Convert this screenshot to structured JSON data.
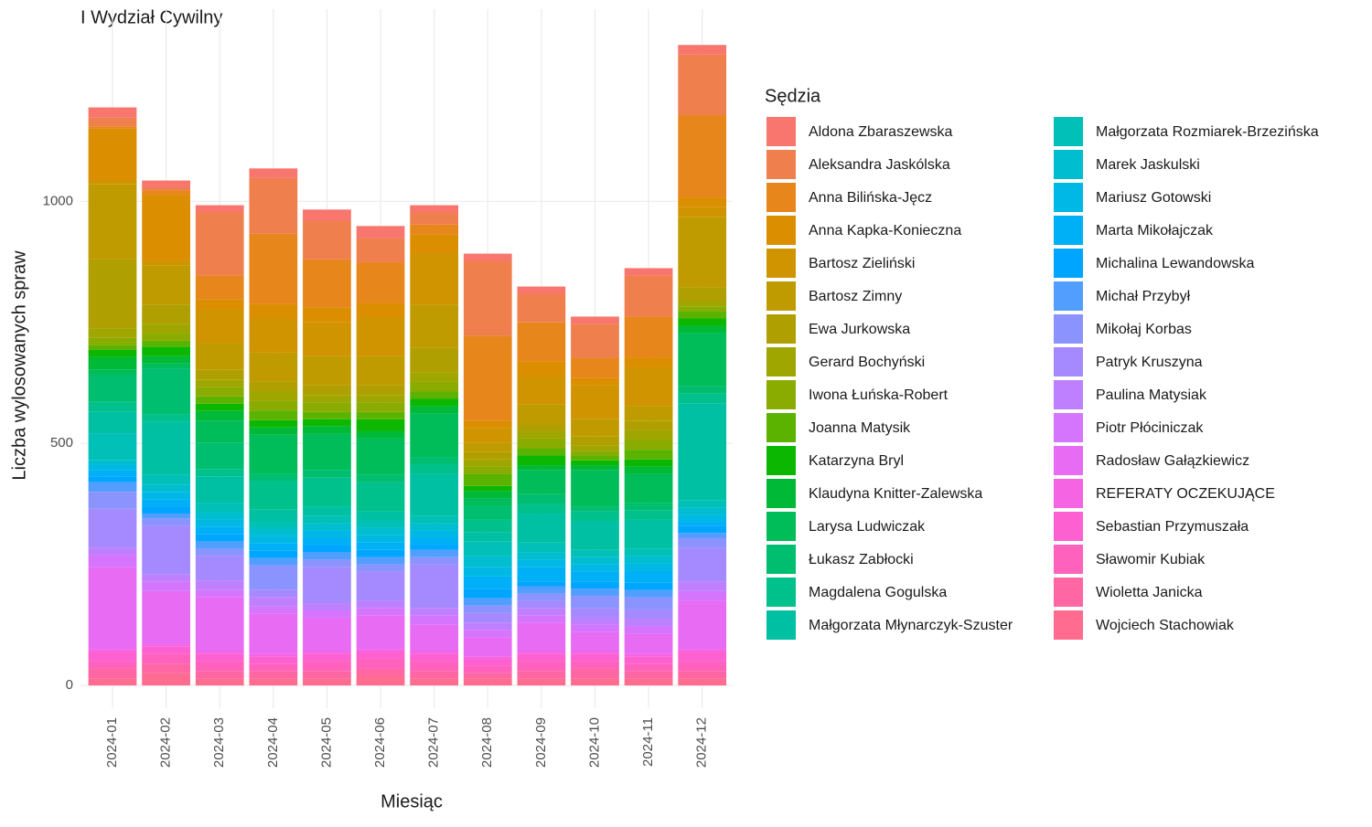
{
  "chart_data": {
    "type": "stacked_bar",
    "title": "I Wydział Cywilny",
    "x_label": "Miesiąc",
    "y_label": "Liczba wylosowanych spraw",
    "legend_title": "Sędzia",
    "categories": [
      "2024-01",
      "2024-02",
      "2024-03",
      "2024-04",
      "2024-05",
      "2024-06",
      "2024-07",
      "2024-08",
      "2024-09",
      "2024-10",
      "2024-11",
      "2024-12"
    ],
    "ylim": [
      -47,
      1397
    ],
    "yticks": [
      0,
      500,
      1000
    ],
    "grid": true,
    "legend": "right",
    "series": [
      {
        "name": "Aldona Zbaraszewska",
        "color": "#F8766D",
        "values": [
          21,
          15,
          15,
          20,
          23,
          25,
          15,
          15,
          15,
          15,
          15,
          20
        ]
      },
      {
        "name": "Aleksandra Jaskólska",
        "color": "#F07F4E",
        "values": [
          18,
          5,
          130,
          115,
          80,
          50,
          25,
          155,
          59,
          70,
          85,
          125
        ]
      },
      {
        "name": "Anna Bilińska-Jęcz",
        "color": "#E7861B",
        "values": [
          5,
          10,
          50,
          145,
          100,
          84,
          20,
          175,
          80,
          42,
          85,
          170
        ]
      },
      {
        "name": "Anna Kapka-Konieczna",
        "color": "#DB8E00",
        "values": [
          105,
          135,
          20,
          30,
          30,
          30,
          40,
          15,
          30,
          15,
          20,
          20
        ]
      },
      {
        "name": "Bartosz Zieliński",
        "color": "#CF9400",
        "values": [
          10,
          10,
          70,
          70,
          70,
          80,
          105,
          30,
          60,
          70,
          80,
          20
        ]
      },
      {
        "name": "Bartosz Zimny",
        "color": "#C09B00",
        "values": [
          155,
          81,
          55,
          60,
          60,
          60,
          90,
          20,
          40,
          35,
          30,
          145
        ]
      },
      {
        "name": "Ewa Jurkowska",
        "color": "#B09F00",
        "values": [
          142,
          40,
          20,
          20,
          20,
          20,
          50,
          15,
          15,
          20,
          20,
          30
        ]
      },
      {
        "name": "Gerard Bochyński",
        "color": "#9FA600",
        "values": [
          20,
          20,
          15,
          20,
          15,
          15,
          20,
          15,
          15,
          10,
          20,
          10
        ]
      },
      {
        "name": "Iwona Łuńska-Robert",
        "color": "#8AAB00",
        "values": [
          15,
          15,
          20,
          20,
          20,
          20,
          20,
          15,
          20,
          10,
          20,
          10
        ]
      },
      {
        "name": "Joanna Matysik",
        "color": "#5BB300",
        "values": [
          10,
          12,
          15,
          20,
          15,
          15,
          15,
          25,
          15,
          10,
          20,
          15
        ]
      },
      {
        "name": "Katarzyna Bryl",
        "color": "#0CB702",
        "values": [
          15,
          20,
          15,
          15,
          15,
          25,
          15,
          10,
          20,
          10,
          15,
          15
        ]
      },
      {
        "name": "Klaudyna Knitter-Zalewska",
        "color": "#00B936",
        "values": [
          25,
          15,
          20,
          15,
          15,
          15,
          15,
          15,
          10,
          10,
          15,
          15
        ]
      },
      {
        "name": "Larysa Ludwiczak",
        "color": "#00BC59",
        "values": [
          12,
          10,
          45,
          80,
          75,
          75,
          90,
          15,
          50,
          75,
          60,
          110
        ]
      },
      {
        "name": "Łukasz Zabłocki",
        "color": "#00BE70",
        "values": [
          55,
          95,
          55,
          15,
          15,
          15,
          15,
          30,
          20,
          10,
          15,
          15
        ]
      },
      {
        "name": "Magdalena Gogulska",
        "color": "#00C08B",
        "values": [
          20,
          15,
          15,
          60,
          60,
          60,
          20,
          25,
          20,
          20,
          20,
          20
        ]
      },
      {
        "name": "Małgorzata Młynarczyk-Szuster",
        "color": "#00C0A3",
        "values": [
          45,
          110,
          55,
          25,
          20,
          20,
          87,
          20,
          60,
          60,
          60,
          200
        ]
      },
      {
        "name": "Małgorzata Rozmiarek-Brzezińska",
        "color": "#00C0B8",
        "values": [
          55,
          20,
          20,
          15,
          15,
          15,
          15,
          30,
          20,
          15,
          15,
          15
        ]
      },
      {
        "name": "Marek Jaskulski",
        "color": "#00BDD0",
        "values": [
          10,
          15,
          15,
          15,
          15,
          15,
          15,
          22,
          15,
          15,
          15,
          15
        ]
      },
      {
        "name": "Mariusz Gotowski",
        "color": "#00B8E5",
        "values": [
          12,
          15,
          15,
          15,
          15,
          15,
          15,
          20,
          15,
          15,
          15,
          15
        ]
      },
      {
        "name": "Marta Mikołajczak",
        "color": "#00B0F6",
        "values": [
          12,
          15,
          15,
          15,
          15,
          15,
          15,
          25,
          30,
          20,
          25,
          8
        ]
      },
      {
        "name": "Michalina Lewandowska",
        "color": "#00A5FF",
        "values": [
          12,
          15,
          15,
          15,
          15,
          15,
          10,
          20,
          10,
          15,
          15,
          15
        ]
      },
      {
        "name": "Michał Przybył",
        "color": "#529EFF",
        "values": [
          20,
          10,
          15,
          15,
          15,
          15,
          15,
          15,
          15,
          15,
          15,
          10
        ]
      },
      {
        "name": "Mikołaj Korbas",
        "color": "#8B93FF",
        "values": [
          35,
          15,
          15,
          50,
          15,
          15,
          15,
          15,
          15,
          25,
          25,
          20
        ]
      },
      {
        "name": "Patryk Kruszyna",
        "color": "#A58AFF",
        "values": [
          80,
          100,
          50,
          15,
          75,
          60,
          90,
          20,
          15,
          20,
          20,
          70
        ]
      },
      {
        "name": "Paulina Matysiak",
        "color": "#BF80FF",
        "values": [
          15,
          15,
          20,
          20,
          15,
          15,
          15,
          15,
          15,
          15,
          15,
          20
        ]
      },
      {
        "name": "Piotr Płóciniczak",
        "color": "#D575FE",
        "values": [
          25,
          20,
          15,
          15,
          15,
          15,
          20,
          15,
          15,
          15,
          15,
          20
        ]
      },
      {
        "name": "Radosław Gałązkiewicz",
        "color": "#E76BF3",
        "values": [
          170,
          110,
          112,
          83,
          70,
          70,
          55,
          40,
          60,
          40,
          42,
          100
        ]
      },
      {
        "name": "REFERATY OCZEKUJĄCE",
        "color": "#F564E3",
        "values": [
          5,
          5,
          5,
          5,
          5,
          5,
          5,
          5,
          5,
          5,
          5,
          5
        ]
      },
      {
        "name": "Sebastian Przymuszała",
        "color": "#FD61D1",
        "values": [
          20,
          15,
          15,
          15,
          15,
          15,
          15,
          15,
          15,
          15,
          15,
          20
        ]
      },
      {
        "name": "Sławomir Kubiak",
        "color": "#FF62BC",
        "values": [
          15,
          20,
          20,
          15,
          20,
          20,
          20,
          15,
          20,
          15,
          15,
          20
        ]
      },
      {
        "name": "Wioletta Janicka",
        "color": "#FF67A4",
        "values": [
          20,
          20,
          15,
          15,
          15,
          15,
          15,
          10,
          15,
          20,
          15,
          15
        ]
      },
      {
        "name": "Wojciech Stachowiak",
        "color": "#FF6C90",
        "values": [
          15,
          25,
          15,
          15,
          15,
          20,
          15,
          15,
          15,
          15,
          15,
          15
        ]
      }
    ]
  }
}
